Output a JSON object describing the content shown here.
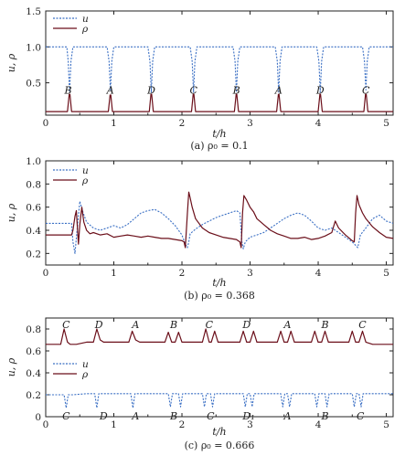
{
  "colors": {
    "u": "#3a6fc4",
    "rho": "#6b0f1a",
    "axis": "#222222"
  },
  "chart_data": [
    {
      "type": "line",
      "caption": "(a) ρ₀ = 0.1",
      "xlabel": "t/h",
      "ylabel": "u, ρ",
      "xlim": [
        0,
        5.1
      ],
      "ylim": [
        0.05,
        1.5
      ],
      "xticks": [
        0,
        1,
        2,
        3,
        4,
        5
      ],
      "yticks": [
        0.5,
        1.0,
        1.5
      ],
      "ytick_labels": [
        "0.5",
        "1.0",
        "1.5"
      ],
      "legend": {
        "position": "top-left",
        "entries": [
          "u",
          "ρ"
        ]
      },
      "series": [
        {
          "name": "u",
          "style": "dotted",
          "x": [
            0,
            0.31,
            0.33,
            0.35,
            0.37,
            0.4,
            0.9,
            0.93,
            0.95,
            0.97,
            1.0,
            1.5,
            1.53,
            1.55,
            1.57,
            1.6,
            2.12,
            2.15,
            2.17,
            2.19,
            2.22,
            2.75,
            2.78,
            2.8,
            2.82,
            2.85,
            3.37,
            3.4,
            3.42,
            3.44,
            3.47,
            3.98,
            4.01,
            4.03,
            4.05,
            4.08,
            4.65,
            4.68,
            4.7,
            4.72,
            4.75,
            5.1
          ],
          "y": [
            1.0,
            1.0,
            0.8,
            0.37,
            0.8,
            1.0,
            1.0,
            0.8,
            0.4,
            0.8,
            1.0,
            1.0,
            0.8,
            0.37,
            0.8,
            1.0,
            1.0,
            0.8,
            0.37,
            0.8,
            1.0,
            1.0,
            0.8,
            0.37,
            0.8,
            1.0,
            1.0,
            0.8,
            0.37,
            0.8,
            1.0,
            1.0,
            0.8,
            0.37,
            0.8,
            1.0,
            1.0,
            0.8,
            0.4,
            0.8,
            1.0,
            1.0
          ]
        },
        {
          "name": "ρ",
          "style": "solid",
          "x": [
            0,
            0.32,
            0.345,
            0.355,
            0.38,
            0.92,
            0.945,
            0.955,
            0.98,
            1.52,
            1.545,
            1.555,
            1.58,
            2.14,
            2.165,
            2.175,
            2.2,
            2.77,
            2.795,
            2.805,
            2.83,
            3.39,
            3.415,
            3.425,
            3.45,
            4.0,
            4.025,
            4.035,
            4.06,
            4.67,
            4.695,
            4.705,
            4.73,
            5.1
          ],
          "y": [
            0.1,
            0.1,
            0.34,
            0.34,
            0.1,
            0.1,
            0.33,
            0.33,
            0.1,
            0.1,
            0.34,
            0.34,
            0.1,
            0.1,
            0.34,
            0.34,
            0.1,
            0.1,
            0.34,
            0.34,
            0.1,
            0.1,
            0.34,
            0.34,
            0.1,
            0.1,
            0.34,
            0.34,
            0.1,
            0.1,
            0.34,
            0.34,
            0.1,
            0.1
          ]
        }
      ],
      "annotations": [
        {
          "text": "B",
          "x": 0.33,
          "y": 0.4
        },
        {
          "text": "A",
          "x": 0.95,
          "y": 0.4
        },
        {
          "text": "D",
          "x": 1.55,
          "y": 0.4
        },
        {
          "text": "C",
          "x": 2.17,
          "y": 0.4
        },
        {
          "text": "B",
          "x": 2.8,
          "y": 0.4
        },
        {
          "text": "A",
          "x": 3.42,
          "y": 0.4
        },
        {
          "text": "D",
          "x": 4.03,
          "y": 0.4
        },
        {
          "text": "C",
          "x": 4.7,
          "y": 0.4
        }
      ]
    },
    {
      "type": "line",
      "caption": "(b) ρ₀ = 0.368",
      "xlabel": "t/h",
      "ylabel": "u, ρ",
      "xlim": [
        0,
        5.1
      ],
      "ylim": [
        0.1,
        1.0
      ],
      "xticks": [
        0,
        1,
        2,
        3,
        4,
        5
      ],
      "yticks": [
        0.2,
        0.4,
        0.6,
        0.8,
        1.0
      ],
      "ytick_labels": [
        "0.2",
        "0.4",
        "0.6",
        "0.8",
        "1.0"
      ],
      "legend": {
        "position": "top-center",
        "entries": [
          "u",
          "ρ"
        ]
      },
      "series": [
        {
          "name": "u",
          "style": "dotted",
          "x": [
            0,
            0.38,
            0.4,
            0.43,
            0.46,
            0.5,
            0.55,
            0.6,
            0.7,
            0.8,
            0.9,
            1.0,
            1.1,
            1.2,
            1.3,
            1.4,
            1.5,
            1.6,
            1.7,
            1.8,
            1.9,
            2.0,
            2.05,
            2.08,
            2.1,
            2.12,
            2.2,
            2.3,
            2.4,
            2.5,
            2.6,
            2.7,
            2.8,
            2.85,
            2.88,
            2.9,
            2.93,
            3.0,
            3.1,
            3.2,
            3.3,
            3.4,
            3.5,
            3.6,
            3.7,
            3.8,
            3.9,
            4.0,
            4.1,
            4.2,
            4.3,
            4.4,
            4.5,
            4.55,
            4.58,
            4.6,
            4.62,
            4.7,
            4.8,
            4.9,
            5.0,
            5.1
          ],
          "y": [
            0.46,
            0.46,
            0.3,
            0.2,
            0.4,
            0.65,
            0.55,
            0.47,
            0.42,
            0.4,
            0.42,
            0.44,
            0.42,
            0.45,
            0.5,
            0.55,
            0.57,
            0.58,
            0.55,
            0.5,
            0.44,
            0.36,
            0.28,
            0.25,
            0.3,
            0.37,
            0.41,
            0.45,
            0.48,
            0.51,
            0.53,
            0.55,
            0.57,
            0.55,
            0.3,
            0.24,
            0.3,
            0.34,
            0.36,
            0.38,
            0.42,
            0.46,
            0.5,
            0.53,
            0.55,
            0.53,
            0.48,
            0.42,
            0.4,
            0.42,
            0.38,
            0.34,
            0.3,
            0.27,
            0.25,
            0.3,
            0.36,
            0.42,
            0.5,
            0.53,
            0.48,
            0.46
          ]
        },
        {
          "name": "ρ",
          "style": "solid",
          "x": [
            0,
            0.38,
            0.4,
            0.43,
            0.45,
            0.48,
            0.5,
            0.53,
            0.56,
            0.6,
            0.65,
            0.7,
            0.8,
            0.9,
            1.0,
            1.1,
            1.2,
            1.3,
            1.4,
            1.5,
            1.6,
            1.7,
            1.8,
            1.9,
            2.0,
            2.03,
            2.05,
            2.08,
            2.1,
            2.12,
            2.15,
            2.2,
            2.3,
            2.4,
            2.5,
            2.6,
            2.7,
            2.8,
            2.85,
            2.87,
            2.89,
            2.91,
            2.95,
            3.0,
            3.05,
            3.1,
            3.2,
            3.3,
            3.4,
            3.5,
            3.6,
            3.7,
            3.8,
            3.9,
            4.0,
            4.1,
            4.2,
            4.25,
            4.3,
            4.4,
            4.5,
            4.53,
            4.55,
            4.57,
            4.6,
            4.65,
            4.7,
            4.8,
            4.9,
            5.0,
            5.1
          ],
          "y": [
            0.36,
            0.36,
            0.4,
            0.52,
            0.57,
            0.28,
            0.45,
            0.6,
            0.47,
            0.4,
            0.37,
            0.38,
            0.36,
            0.37,
            0.34,
            0.35,
            0.36,
            0.35,
            0.34,
            0.35,
            0.34,
            0.33,
            0.33,
            0.32,
            0.31,
            0.3,
            0.25,
            0.55,
            0.73,
            0.68,
            0.6,
            0.5,
            0.42,
            0.38,
            0.36,
            0.34,
            0.33,
            0.32,
            0.3,
            0.25,
            0.55,
            0.7,
            0.66,
            0.6,
            0.56,
            0.5,
            0.45,
            0.4,
            0.37,
            0.35,
            0.33,
            0.33,
            0.34,
            0.32,
            0.33,
            0.35,
            0.38,
            0.48,
            0.42,
            0.36,
            0.31,
            0.3,
            0.55,
            0.7,
            0.62,
            0.55,
            0.5,
            0.43,
            0.38,
            0.34,
            0.33
          ]
        }
      ]
    },
    {
      "type": "line",
      "caption": "(c) ρ₀ = 0.666",
      "xlabel": "t/h",
      "ylabel": "u, ρ",
      "xlim": [
        0,
        5.1
      ],
      "ylim": [
        0.0,
        0.9
      ],
      "xticks": [
        0,
        1,
        2,
        3,
        4,
        5
      ],
      "yticks": [
        0,
        0.2,
        0.4,
        0.6,
        0.8
      ],
      "ytick_labels": [
        "0",
        "0.2",
        "0.4",
        "0.6",
        "0.8"
      ],
      "legend": {
        "position": "middle-left",
        "entries": [
          "u",
          "ρ"
        ]
      },
      "series": [
        {
          "name": "u",
          "style": "dotted",
          "x": [
            0,
            0.2,
            0.27,
            0.3,
            0.33,
            0.4,
            0.6,
            0.72,
            0.75,
            0.78,
            0.85,
            1.0,
            1.25,
            1.28,
            1.31,
            1.4,
            1.5,
            1.8,
            1.83,
            1.86,
            1.9,
            1.95,
            1.98,
            2.01,
            2.1,
            2.3,
            2.33,
            2.36,
            2.42,
            2.45,
            2.48,
            2.6,
            2.9,
            2.93,
            2.96,
            3.0,
            3.03,
            3.06,
            3.3,
            3.45,
            3.48,
            3.51,
            3.55,
            3.58,
            3.61,
            3.8,
            3.95,
            3.98,
            4.01,
            4.1,
            4.13,
            4.16,
            4.4,
            4.5,
            4.53,
            4.56,
            4.6,
            4.63,
            4.66,
            4.75,
            5.1
          ],
          "y": [
            0.2,
            0.2,
            0.2,
            0.08,
            0.2,
            0.2,
            0.21,
            0.21,
            0.08,
            0.21,
            0.21,
            0.21,
            0.21,
            0.08,
            0.21,
            0.21,
            0.21,
            0.21,
            0.09,
            0.21,
            0.21,
            0.21,
            0.09,
            0.21,
            0.21,
            0.21,
            0.09,
            0.21,
            0.21,
            0.09,
            0.21,
            0.21,
            0.21,
            0.09,
            0.21,
            0.21,
            0.09,
            0.21,
            0.21,
            0.21,
            0.09,
            0.21,
            0.21,
            0.09,
            0.21,
            0.21,
            0.21,
            0.09,
            0.21,
            0.21,
            0.09,
            0.21,
            0.21,
            0.21,
            0.09,
            0.21,
            0.21,
            0.09,
            0.21,
            0.21,
            0.21
          ]
        },
        {
          "name": "ρ",
          "style": "solid",
          "x": [
            0,
            0.22,
            0.27,
            0.32,
            0.36,
            0.45,
            0.6,
            0.7,
            0.75,
            0.8,
            0.85,
            1.0,
            1.22,
            1.27,
            1.32,
            1.38,
            1.5,
            1.75,
            1.8,
            1.85,
            1.9,
            1.95,
            2.0,
            2.05,
            2.2,
            2.3,
            2.35,
            2.4,
            2.43,
            2.48,
            2.53,
            2.65,
            2.85,
            2.9,
            2.95,
            3.0,
            3.05,
            3.1,
            3.3,
            3.4,
            3.45,
            3.5,
            3.55,
            3.6,
            3.65,
            3.85,
            3.9,
            3.95,
            4.0,
            4.05,
            4.1,
            4.15,
            4.4,
            4.45,
            4.5,
            4.55,
            4.6,
            4.65,
            4.7,
            4.8,
            5.1
          ],
          "y": [
            0.66,
            0.66,
            0.8,
            0.68,
            0.66,
            0.66,
            0.68,
            0.68,
            0.8,
            0.7,
            0.68,
            0.68,
            0.68,
            0.78,
            0.7,
            0.68,
            0.68,
            0.68,
            0.77,
            0.68,
            0.68,
            0.77,
            0.68,
            0.68,
            0.68,
            0.68,
            0.8,
            0.68,
            0.68,
            0.78,
            0.68,
            0.68,
            0.68,
            0.78,
            0.68,
            0.68,
            0.78,
            0.68,
            0.68,
            0.68,
            0.78,
            0.68,
            0.68,
            0.78,
            0.68,
            0.68,
            0.68,
            0.78,
            0.68,
            0.68,
            0.78,
            0.68,
            0.68,
            0.68,
            0.78,
            0.68,
            0.68,
            0.78,
            0.68,
            0.66,
            0.66
          ]
        }
      ],
      "annotations": [
        {
          "text": "C",
          "x": 0.3,
          "y": 0.84
        },
        {
          "text": "D",
          "x": 0.78,
          "y": 0.84
        },
        {
          "text": "A",
          "x": 1.32,
          "y": 0.84
        },
        {
          "text": "B",
          "x": 1.88,
          "y": 0.84
        },
        {
          "text": "C",
          "x": 2.4,
          "y": 0.84
        },
        {
          "text": "D",
          "x": 2.95,
          "y": 0.84
        },
        {
          "text": "A",
          "x": 3.55,
          "y": 0.84
        },
        {
          "text": "B",
          "x": 4.1,
          "y": 0.84
        },
        {
          "text": "C",
          "x": 4.65,
          "y": 0.84
        },
        {
          "text": "C",
          "x": 0.3,
          "y": 0.01
        },
        {
          "text": "D",
          "x": 0.85,
          "y": 0.01
        },
        {
          "text": "A",
          "x": 1.32,
          "y": 0.01
        },
        {
          "text": "B",
          "x": 1.88,
          "y": 0.01
        },
        {
          "text": "C",
          "x": 2.42,
          "y": 0.01
        },
        {
          "text": "D₁",
          "x": 2.98,
          "y": 0.01
        },
        {
          "text": "A",
          "x": 3.55,
          "y": 0.01
        },
        {
          "text": "B",
          "x": 4.1,
          "y": 0.01
        },
        {
          "text": "C",
          "x": 4.62,
          "y": 0.01
        }
      ]
    }
  ]
}
